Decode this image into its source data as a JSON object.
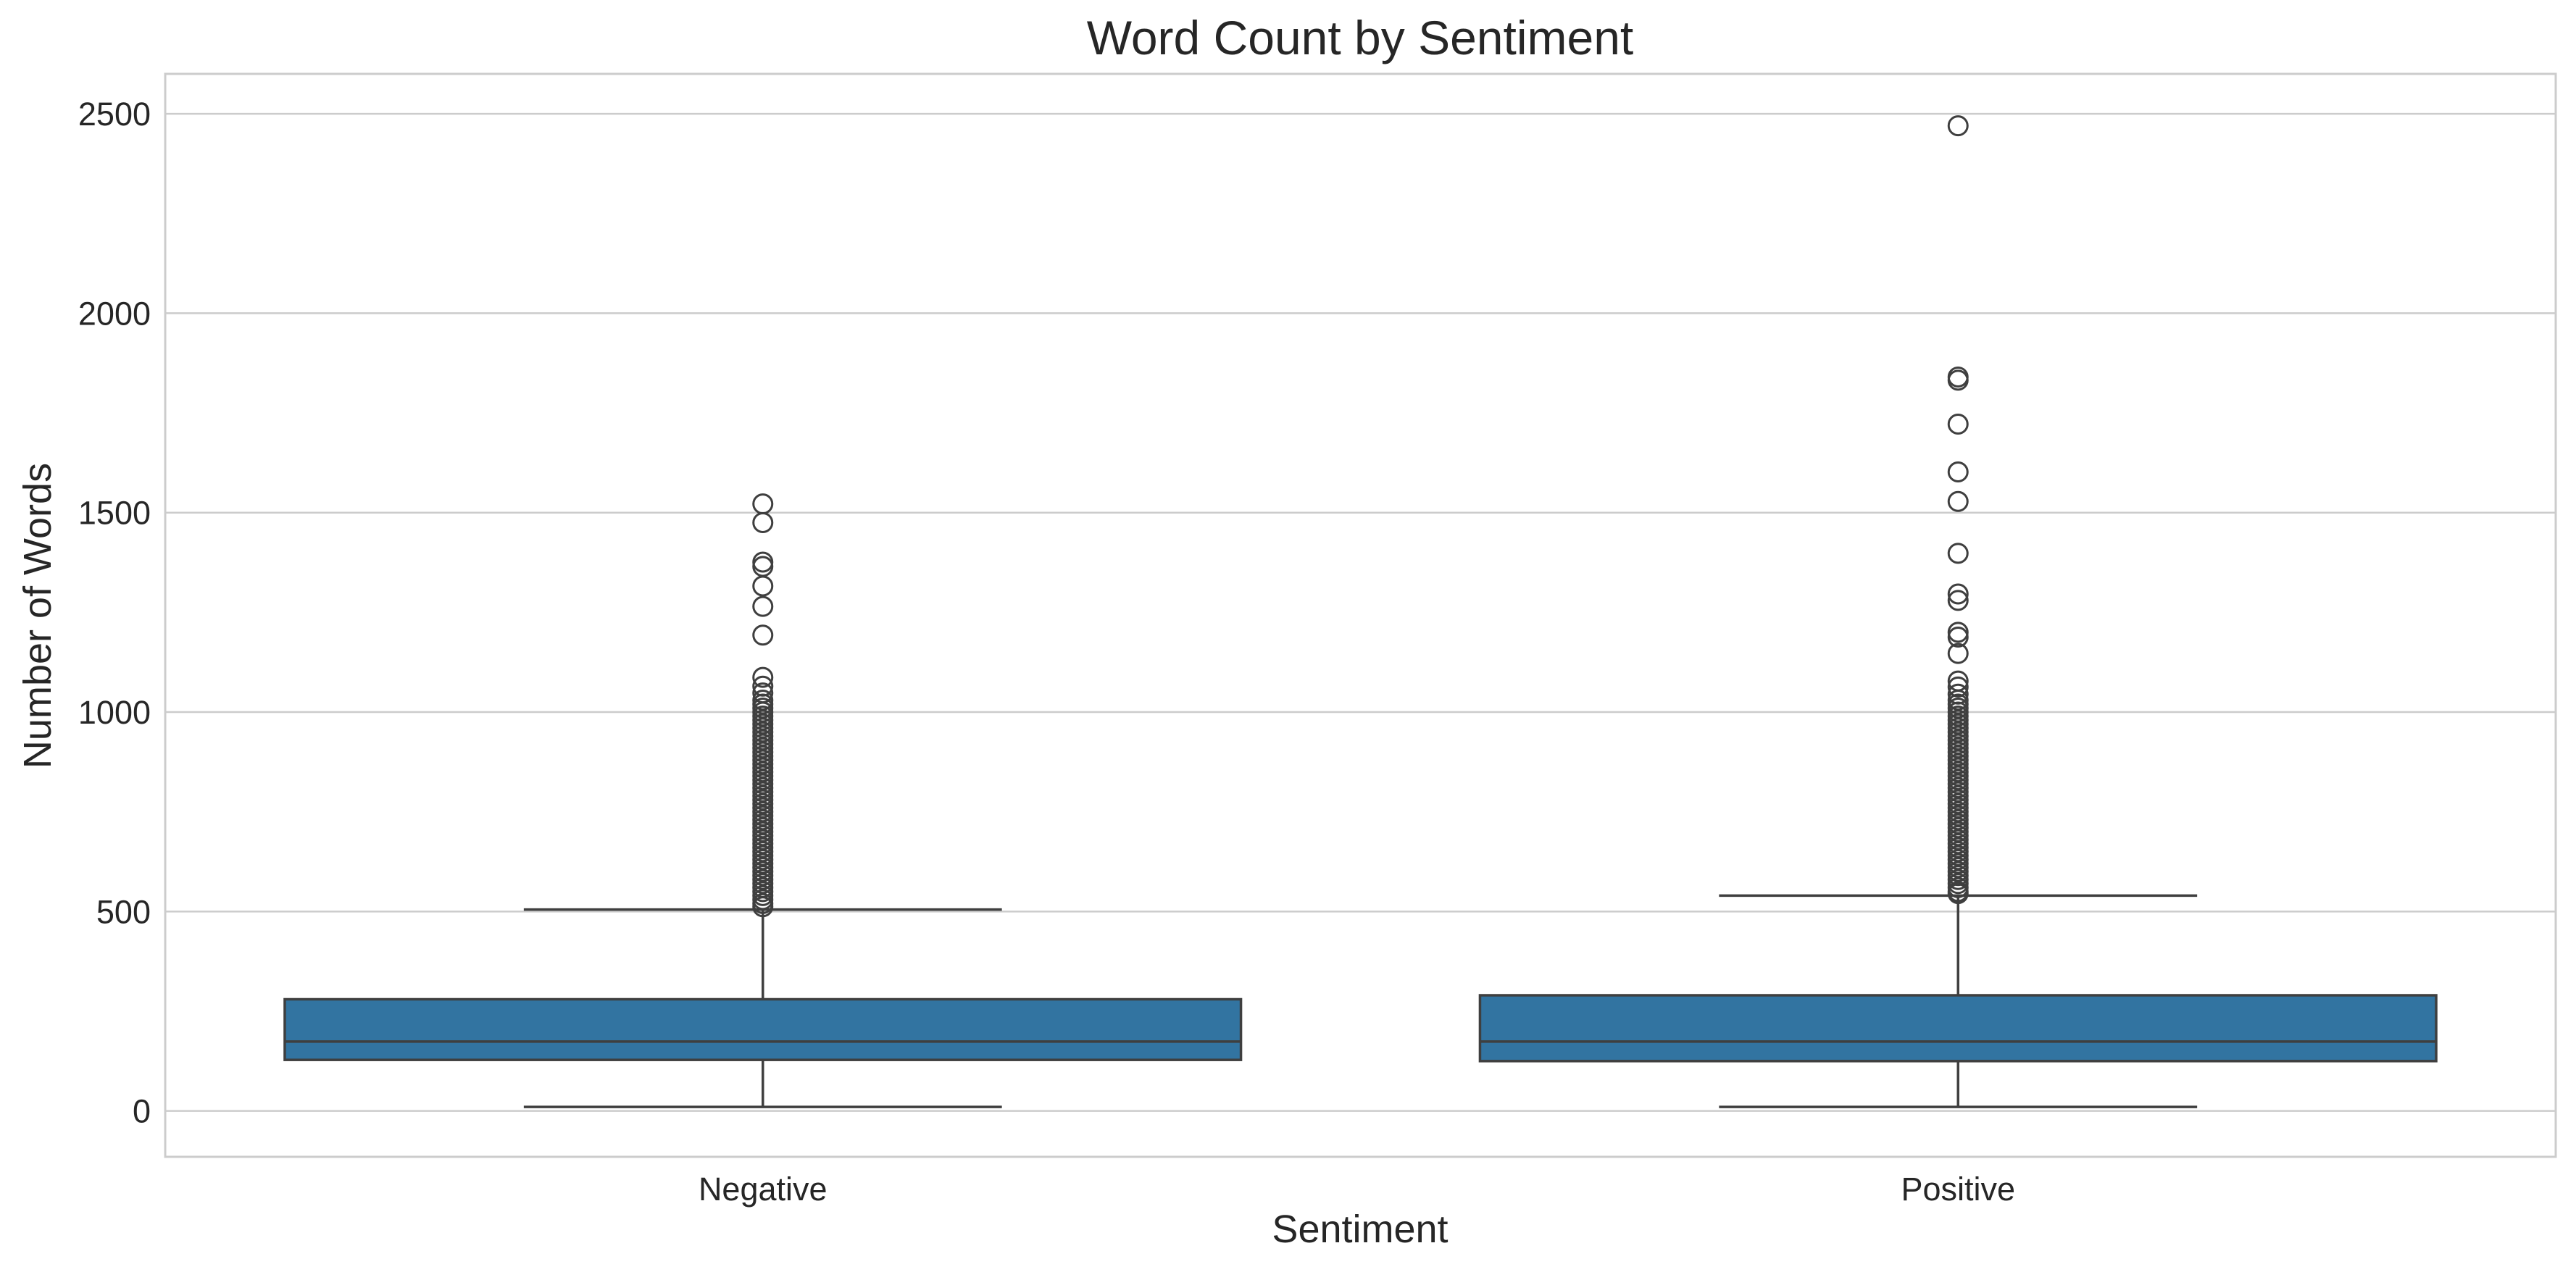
{
  "chart_data": {
    "type": "box",
    "title": "Word Count by Sentiment",
    "xlabel": "Sentiment",
    "ylabel": "Number of Words",
    "ylim": [
      -115,
      2600
    ],
    "yticks": [
      0,
      500,
      1000,
      1500,
      2000,
      2500
    ],
    "grid": true,
    "box_color": "#3274a1",
    "edge_color": "#3f3f3f",
    "categories": [
      "Negative",
      "Positive"
    ],
    "boxes": [
      {
        "category": "Negative",
        "whisker_low": 10,
        "q1": 128,
        "median": 174,
        "q3": 280,
        "whisker_high": 505,
        "outliers": [
          1522,
          1475,
          1376,
          1365,
          1316,
          1265,
          1193,
          1087,
          1065,
          1048,
          1030,
          1020,
          1010,
          1000,
          990,
          980,
          970,
          960,
          950,
          940,
          930,
          920,
          910,
          900,
          890,
          880,
          870,
          860,
          850,
          840,
          830,
          820,
          810,
          800,
          790,
          780,
          770,
          760,
          750,
          740,
          730,
          720,
          710,
          700,
          690,
          680,
          670,
          660,
          650,
          640,
          630,
          620,
          610,
          600,
          590,
          580,
          570,
          560,
          550,
          540,
          530,
          520,
          512
        ]
      },
      {
        "category": "Positive",
        "whisker_low": 10,
        "q1": 125,
        "median": 174,
        "q3": 290,
        "whisker_high": 540,
        "outliers": [
          2470,
          1840,
          1832,
          1722,
          1602,
          1528,
          1398,
          1296,
          1280,
          1200,
          1188,
          1147,
          1078,
          1063,
          1045,
          1030,
          1020,
          1010,
          1000,
          990,
          980,
          970,
          960,
          950,
          940,
          930,
          920,
          910,
          900,
          890,
          880,
          870,
          860,
          850,
          840,
          830,
          820,
          810,
          800,
          790,
          780,
          770,
          760,
          750,
          740,
          730,
          720,
          710,
          700,
          690,
          680,
          670,
          660,
          650,
          640,
          630,
          620,
          610,
          600,
          590,
          580,
          570,
          560,
          550,
          545
        ]
      }
    ]
  }
}
